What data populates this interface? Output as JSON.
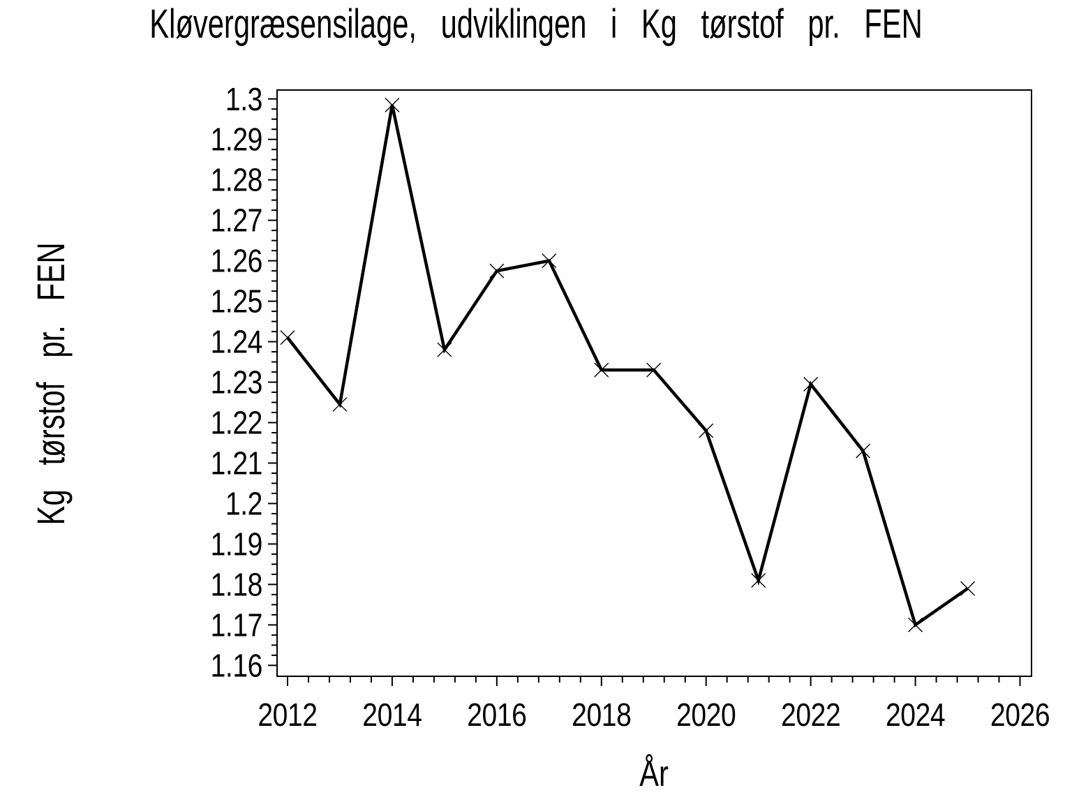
{
  "chart_data": {
    "type": "line",
    "title": "Kløvergræsensilage, udviklingen i Kg tørstof pr. FEN",
    "xlabel": "År",
    "ylabel": "Kg tørstof pr. FEN",
    "x": [
      2012,
      2013,
      2014,
      2015,
      2016,
      2017,
      2018,
      2019,
      2020,
      2021,
      2022,
      2023,
      2024,
      2025
    ],
    "series": [
      {
        "name": "Kg tørstof pr. FEN",
        "values": [
          1.241,
          1.2245,
          1.2985,
          1.238,
          1.2575,
          1.26,
          1.233,
          1.233,
          1.218,
          1.181,
          1.2295,
          1.213,
          1.17,
          1.179
        ]
      }
    ],
    "marker": "x",
    "grid": false,
    "legend": false,
    "line_color": "#000000",
    "background_color": "#ffffff",
    "x_axis": {
      "min": 2011.8,
      "max": 2026.22,
      "major_tick_start": 2012,
      "major_tick_end": 2026,
      "major_tick_step": 2,
      "minor_tick_step": 0.4,
      "tick_labels": [
        "2012",
        "2014",
        "2016",
        "2018",
        "2020",
        "2022",
        "2024",
        "2026"
      ]
    },
    "y_axis": {
      "min": 1.1573,
      "max": 1.3022,
      "major_tick_start": 1.16,
      "major_tick_end": 1.3,
      "major_tick_step": 0.01,
      "minor_tick_step": 0.0025,
      "tick_labels": [
        "1.16",
        "1.17",
        "1.18",
        "1.19",
        "1.2",
        "1.21",
        "1.22",
        "1.23",
        "1.24",
        "1.25",
        "1.26",
        "1.27",
        "1.28",
        "1.29",
        "1.3"
      ]
    }
  }
}
